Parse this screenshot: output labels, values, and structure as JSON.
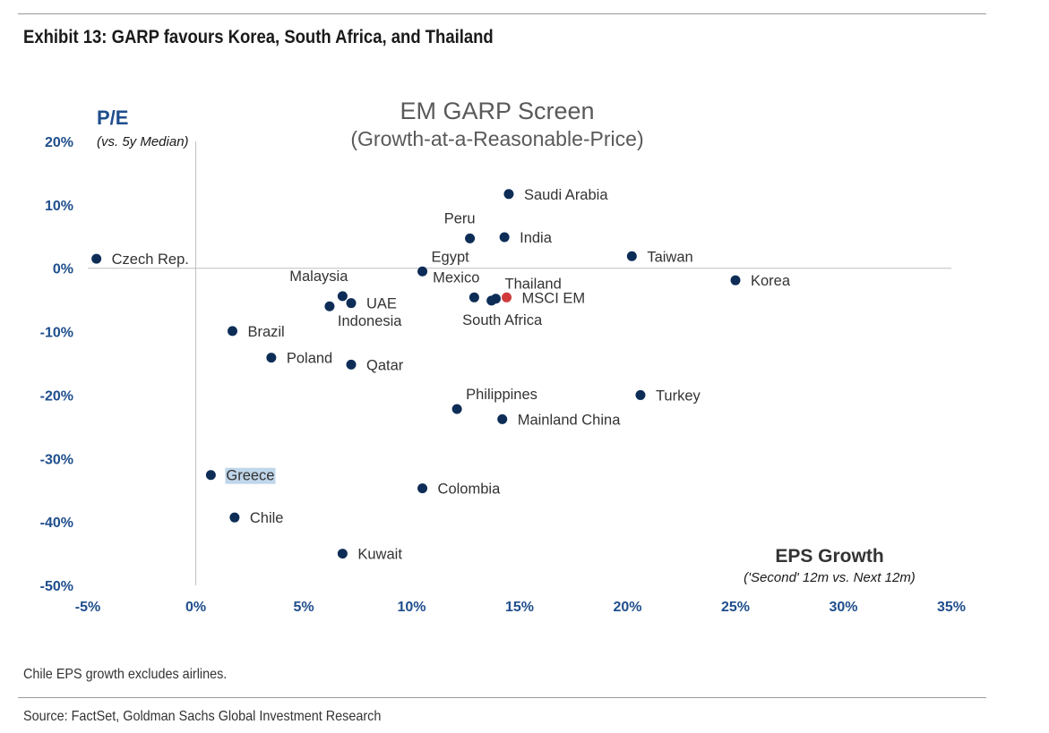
{
  "header": {
    "exhibit_title": "Exhibit 13: GARP favours Korea, South Africa, and Thailand"
  },
  "footer": {
    "note": "Chile EPS growth excludes airlines.",
    "source": "Source: FactSet, Goldman Sachs Global Investment Research"
  },
  "colors": {
    "point": "#0d2d57",
    "benchmark": "#d03a3a",
    "axis_label": "#1f4e8c",
    "tick": "#1f4e8c",
    "highlight": "#c0d6ea"
  },
  "chart_data": {
    "type": "scatter",
    "title": "EM GARP Screen",
    "subtitle": "(Growth-at-a-Reasonable-Price)",
    "ylabel": "P/E",
    "ylabel_sub": "(vs. 5y Median)",
    "xlabel": "EPS Growth",
    "xlabel_sub": "('Second' 12m vs. Next 12m)",
    "xlim": [
      -5,
      35
    ],
    "ylim": [
      -50,
      20
    ],
    "x_ticks": [
      -5,
      0,
      5,
      10,
      15,
      20,
      25,
      30,
      35
    ],
    "y_ticks": [
      20,
      10,
      0,
      -10,
      -20,
      -30,
      -40,
      -50
    ],
    "x_tick_labels": [
      "-5%",
      "0%",
      "5%",
      "10%",
      "15%",
      "20%",
      "25%",
      "30%",
      "35%"
    ],
    "y_tick_labels": [
      "20%",
      "10%",
      "0%",
      "-10%",
      "-20%",
      "-30%",
      "-40%",
      "-50%"
    ],
    "grid": false,
    "points": [
      {
        "name": "Czech Rep.",
        "x": -4.6,
        "y": 1.5,
        "label_pos": "right"
      },
      {
        "name": "Saudi Arabia",
        "x": 14.5,
        "y": 11.7,
        "label_pos": "right"
      },
      {
        "name": "Peru",
        "x": 12.7,
        "y": 4.7,
        "label_pos": "above-left"
      },
      {
        "name": "India",
        "x": 14.3,
        "y": 4.9,
        "label_pos": "right"
      },
      {
        "name": "Taiwan",
        "x": 20.2,
        "y": 1.9,
        "label_pos": "right"
      },
      {
        "name": "Egypt",
        "x": 10.5,
        "y": -0.5,
        "label_pos": "above-right"
      },
      {
        "name": "Korea",
        "x": 25.0,
        "y": -1.9,
        "label_pos": "right"
      },
      {
        "name": "Malaysia",
        "x": 6.8,
        "y": -4.4,
        "label_pos": "above-left"
      },
      {
        "name": "UAE",
        "x": 7.2,
        "y": -5.5,
        "label_pos": "right"
      },
      {
        "name": "Indonesia",
        "x": 6.2,
        "y": -6.0,
        "label_pos": "below-right"
      },
      {
        "name": "Mexico",
        "x": 12.9,
        "y": -4.6,
        "label_pos": "above-left"
      },
      {
        "name": "Thailand",
        "x": 13.9,
        "y": -4.8,
        "label_pos": "above-right"
      },
      {
        "name": "South Africa",
        "x": 13.7,
        "y": -5.1,
        "label_pos": "below"
      },
      {
        "name": "MSCI EM",
        "x": 14.4,
        "y": -4.6,
        "label_pos": "right",
        "benchmark": true
      },
      {
        "name": "Brazil",
        "x": 1.7,
        "y": -9.9,
        "label_pos": "right"
      },
      {
        "name": "Poland",
        "x": 3.5,
        "y": -14.1,
        "label_pos": "right"
      },
      {
        "name": "Qatar",
        "x": 7.2,
        "y": -15.2,
        "label_pos": "right"
      },
      {
        "name": "Philippines",
        "x": 12.1,
        "y": -22.2,
        "label_pos": "above-right"
      },
      {
        "name": "Turkey",
        "x": 20.6,
        "y": -20.0,
        "label_pos": "right"
      },
      {
        "name": "Mainland China",
        "x": 14.2,
        "y": -23.8,
        "label_pos": "right"
      },
      {
        "name": "Greece",
        "x": 0.7,
        "y": -32.6,
        "label_pos": "right",
        "highlight": true
      },
      {
        "name": "Colombia",
        "x": 10.5,
        "y": -34.7,
        "label_pos": "right"
      },
      {
        "name": "Chile",
        "x": 1.8,
        "y": -39.3,
        "label_pos": "right"
      },
      {
        "name": "Kuwait",
        "x": 6.8,
        "y": -45.0,
        "label_pos": "right"
      }
    ]
  }
}
